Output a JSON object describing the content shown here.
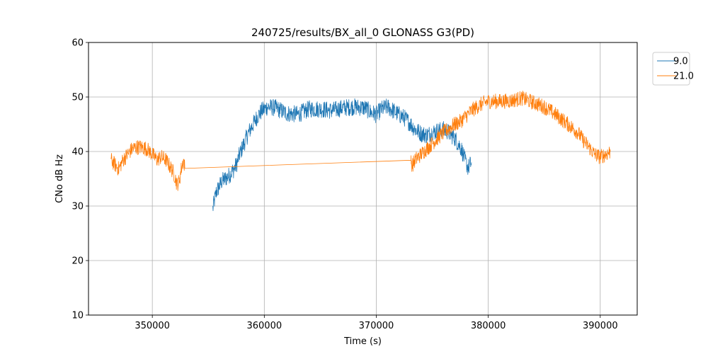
{
  "chart_data": {
    "type": "line",
    "title": "240725/results/BX_all_0 GLONASS G3(PD)",
    "xlabel": "Time (s)",
    "ylabel": "CNo dB Hz",
    "xlim": [
      344300,
      393300
    ],
    "ylim": [
      10,
      60
    ],
    "xticks": [
      350000,
      360000,
      370000,
      380000,
      390000
    ],
    "xtick_labels": [
      "350000",
      "360000",
      "370000",
      "380000",
      "390000"
    ],
    "yticks": [
      10,
      20,
      30,
      40,
      50,
      60
    ],
    "ytick_labels": [
      "10",
      "20",
      "30",
      "40",
      "50",
      "60"
    ],
    "grid": true,
    "legend_position": "outside-top-right",
    "series": [
      {
        "name": "9.0",
        "color": "#1f77b4",
        "noise": 1.6,
        "points": [
          [
            355400,
            29.5
          ],
          [
            355700,
            32.5
          ],
          [
            356200,
            34.5
          ],
          [
            356800,
            35.5
          ],
          [
            357200,
            36.5
          ],
          [
            357500,
            37.5
          ],
          [
            357800,
            39.5
          ],
          [
            358200,
            41.5
          ],
          [
            358600,
            43.5
          ],
          [
            359000,
            45.0
          ],
          [
            359400,
            46.5
          ],
          [
            359800,
            47.5
          ],
          [
            360300,
            48.2
          ],
          [
            361000,
            48.0
          ],
          [
            362000,
            47.0
          ],
          [
            363000,
            46.8
          ],
          [
            364000,
            47.8
          ],
          [
            365000,
            47.8
          ],
          [
            366000,
            47.5
          ],
          [
            367000,
            48.0
          ],
          [
            368000,
            48.2
          ],
          [
            369000,
            48.0
          ],
          [
            369500,
            47.2
          ],
          [
            370000,
            46.8
          ],
          [
            370500,
            47.8
          ],
          [
            371000,
            48.2
          ],
          [
            371500,
            47.5
          ],
          [
            372000,
            46.8
          ],
          [
            372500,
            46.2
          ],
          [
            373000,
            45.2
          ],
          [
            373500,
            44.0
          ],
          [
            374000,
            43.3
          ],
          [
            374500,
            43.0
          ],
          [
            375000,
            43.5
          ],
          [
            375500,
            43.8
          ],
          [
            376000,
            44.0
          ],
          [
            376300,
            43.8
          ],
          [
            376600,
            43.2
          ],
          [
            377000,
            42.5
          ],
          [
            377300,
            41.5
          ],
          [
            377600,
            40.5
          ],
          [
            377900,
            38.5
          ],
          [
            378200,
            37.0
          ],
          [
            378500,
            38.0
          ]
        ]
      },
      {
        "name": "21.0",
        "color": "#ff7f0e",
        "noise": 1.4,
        "points": [
          [
            346300,
            38.5
          ],
          [
            346700,
            37.5
          ],
          [
            347000,
            36.8
          ],
          [
            347400,
            38.5
          ],
          [
            347800,
            39.5
          ],
          [
            348200,
            40.5
          ],
          [
            348600,
            40.8
          ],
          [
            349000,
            40.8
          ],
          [
            349500,
            40.5
          ],
          [
            350000,
            39.5
          ],
          [
            350400,
            38.5
          ],
          [
            350800,
            39.0
          ],
          [
            351200,
            38.5
          ],
          [
            351500,
            37.5
          ],
          [
            351800,
            36.5
          ],
          [
            352000,
            35.5
          ],
          [
            352200,
            34.0
          ],
          [
            352400,
            34.5
          ],
          [
            352600,
            37.0
          ],
          [
            352800,
            38.5
          ],
          [
            352900,
            36.9
          ],
          [
            373100,
            38.4
          ],
          [
            373200,
            37.5
          ],
          [
            373500,
            38.5
          ],
          [
            374000,
            39.5
          ],
          [
            374500,
            40.5
          ],
          [
            375000,
            41.5
          ],
          [
            375500,
            42.5
          ],
          [
            376000,
            43.5
          ],
          [
            376500,
            44.2
          ],
          [
            377000,
            45.0
          ],
          [
            377500,
            45.5
          ],
          [
            378000,
            46.5
          ],
          [
            378500,
            47.5
          ],
          [
            379000,
            48.2
          ],
          [
            379500,
            48.8
          ],
          [
            380000,
            49.2
          ],
          [
            381000,
            49.2
          ],
          [
            382000,
            49.3
          ],
          [
            383000,
            49.8
          ],
          [
            384000,
            49.0
          ],
          [
            385000,
            48.2
          ],
          [
            386000,
            46.8
          ],
          [
            387000,
            45.2
          ],
          [
            388000,
            43.5
          ],
          [
            388500,
            42.0
          ],
          [
            389000,
            40.8
          ],
          [
            389500,
            39.5
          ],
          [
            390000,
            39.0
          ],
          [
            390500,
            39.5
          ],
          [
            390900,
            40.0
          ]
        ]
      }
    ]
  }
}
